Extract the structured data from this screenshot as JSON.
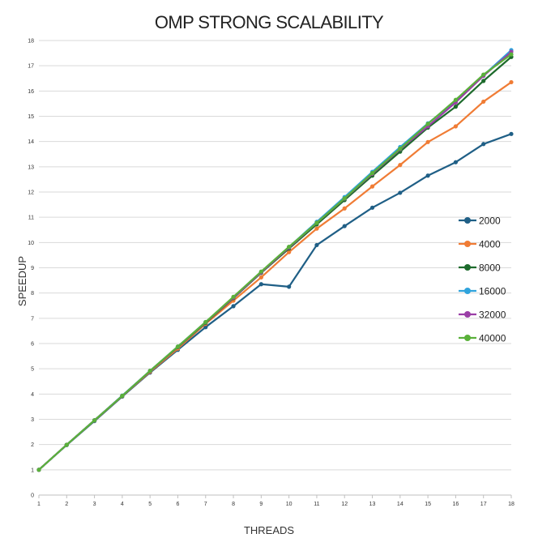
{
  "chart_data": {
    "type": "line",
    "title": "OMP STRONG SCALABILITY",
    "xlabel": "THREADS",
    "ylabel": "SPEEDUP",
    "x": [
      1,
      2,
      3,
      4,
      5,
      6,
      7,
      8,
      9,
      10,
      11,
      12,
      13,
      14,
      15,
      16,
      17,
      18
    ],
    "xlim": [
      1,
      18
    ],
    "ylim": [
      0,
      18
    ],
    "yticks": [
      0,
      1,
      2,
      3,
      4,
      5,
      6,
      7,
      8,
      9,
      10,
      11,
      12,
      13,
      14,
      15,
      16,
      17,
      18
    ],
    "grid": true,
    "legend_position": "right",
    "series": [
      {
        "name": "2000",
        "color": "#1f5f86",
        "values": [
          1,
          1.98,
          2.93,
          3.9,
          4.85,
          5.75,
          6.65,
          7.48,
          8.35,
          8.25,
          9.9,
          10.65,
          11.38,
          11.97,
          12.65,
          13.18,
          13.9,
          14.3
        ]
      },
      {
        "name": "4000",
        "color": "#f07c35",
        "values": [
          1,
          1.99,
          2.95,
          3.92,
          4.88,
          5.8,
          6.78,
          7.7,
          8.62,
          9.62,
          10.55,
          11.35,
          12.22,
          13.07,
          13.98,
          14.6,
          15.58,
          16.35
        ]
      },
      {
        "name": "8000",
        "color": "#1d6b2c",
        "values": [
          1,
          1.99,
          2.96,
          3.93,
          4.91,
          5.86,
          6.82,
          7.8,
          8.8,
          9.76,
          10.72,
          11.68,
          12.65,
          13.6,
          14.55,
          15.38,
          16.4,
          17.35
        ]
      },
      {
        "name": "16000",
        "color": "#2fa3dc",
        "values": [
          1,
          1.99,
          2.96,
          3.94,
          4.92,
          5.88,
          6.85,
          7.83,
          8.84,
          9.82,
          10.82,
          11.8,
          12.8,
          13.78,
          14.72,
          15.6,
          16.62,
          17.62
        ]
      },
      {
        "name": "32000",
        "color": "#9a3ea6",
        "values": [
          1,
          1.99,
          2.96,
          3.93,
          4.91,
          5.87,
          6.84,
          7.82,
          8.82,
          9.8,
          10.78,
          11.74,
          12.72,
          13.7,
          14.6,
          15.55,
          16.6,
          17.55
        ]
      },
      {
        "name": "40000",
        "color": "#5ab13a",
        "values": [
          1,
          1.99,
          2.96,
          3.93,
          4.92,
          5.88,
          6.85,
          7.85,
          8.85,
          9.83,
          10.78,
          11.75,
          12.75,
          13.72,
          14.7,
          15.65,
          16.65,
          17.45
        ]
      }
    ]
  }
}
